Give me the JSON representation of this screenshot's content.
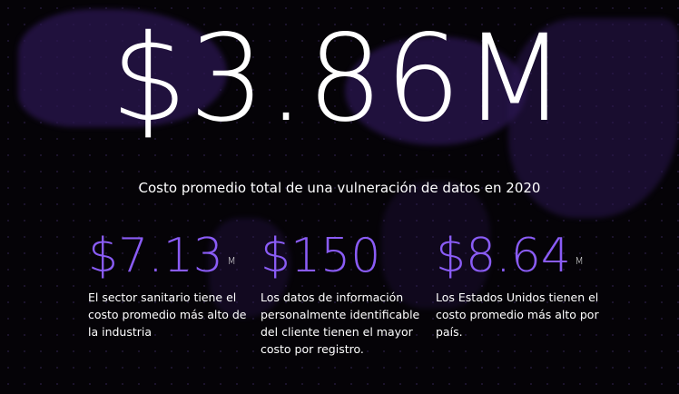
{
  "hero": {
    "value": "$3.86M",
    "caption": "Costo promedio total de una vulneración de datos en 2020"
  },
  "stats": [
    {
      "value": "$7.13",
      "suffix": "M",
      "description": "El sector sanitario tiene el costo promedio más alto de la industria"
    },
    {
      "value": "$150",
      "suffix": "",
      "description": "Los datos de información personalmente identificable del cliente tienen el mayor costo por registro."
    },
    {
      "value": "$8.64",
      "suffix": "M",
      "description": "Los Estados Unidos tienen el costo promedio más alto por país."
    }
  ],
  "colors": {
    "accent": "#8a5cf6",
    "background": "#050307",
    "map": "#2a1650"
  }
}
